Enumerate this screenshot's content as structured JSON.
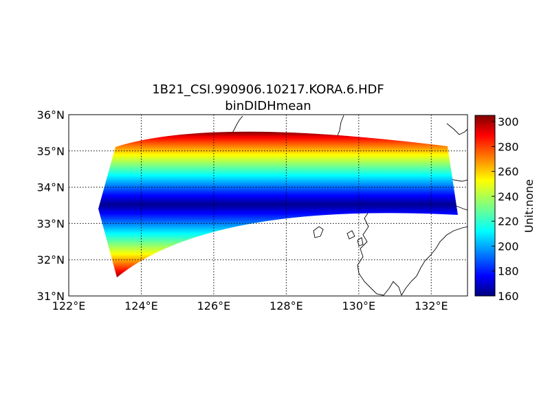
{
  "figure": {
    "title": "1B21_CSI.990906.10217.KORA.6.HDF",
    "subtitle": "binDIDHmean"
  },
  "map": {
    "lon_range": [
      122,
      133
    ],
    "lat_range": [
      31,
      36
    ],
    "grid": true,
    "lon_ticks": [
      "122°E",
      "124°E",
      "126°E",
      "128°E",
      "130°E",
      "132°E"
    ],
    "lat_ticks": [
      "31°N",
      "32°N",
      "33°N",
      "34°N",
      "35°N",
      "36°N"
    ],
    "swath_corners": {
      "northwest": [
        122.85,
        33.42
      ],
      "southwest": [
        123.25,
        31.55
      ],
      "northeast": [
        132.55,
        35.15
      ],
      "southeast": [
        132.75,
        33.25
      ]
    },
    "swath_value_profile": "minimum (~160) along swath center, rising to maximum (~300) at both edges"
  },
  "colorbar": {
    "label": "Unit:none",
    "range": [
      160,
      305
    ],
    "ticks": [
      "160",
      "180",
      "200",
      "220",
      "240",
      "260",
      "280",
      "300"
    ],
    "colormap": "jet"
  }
}
